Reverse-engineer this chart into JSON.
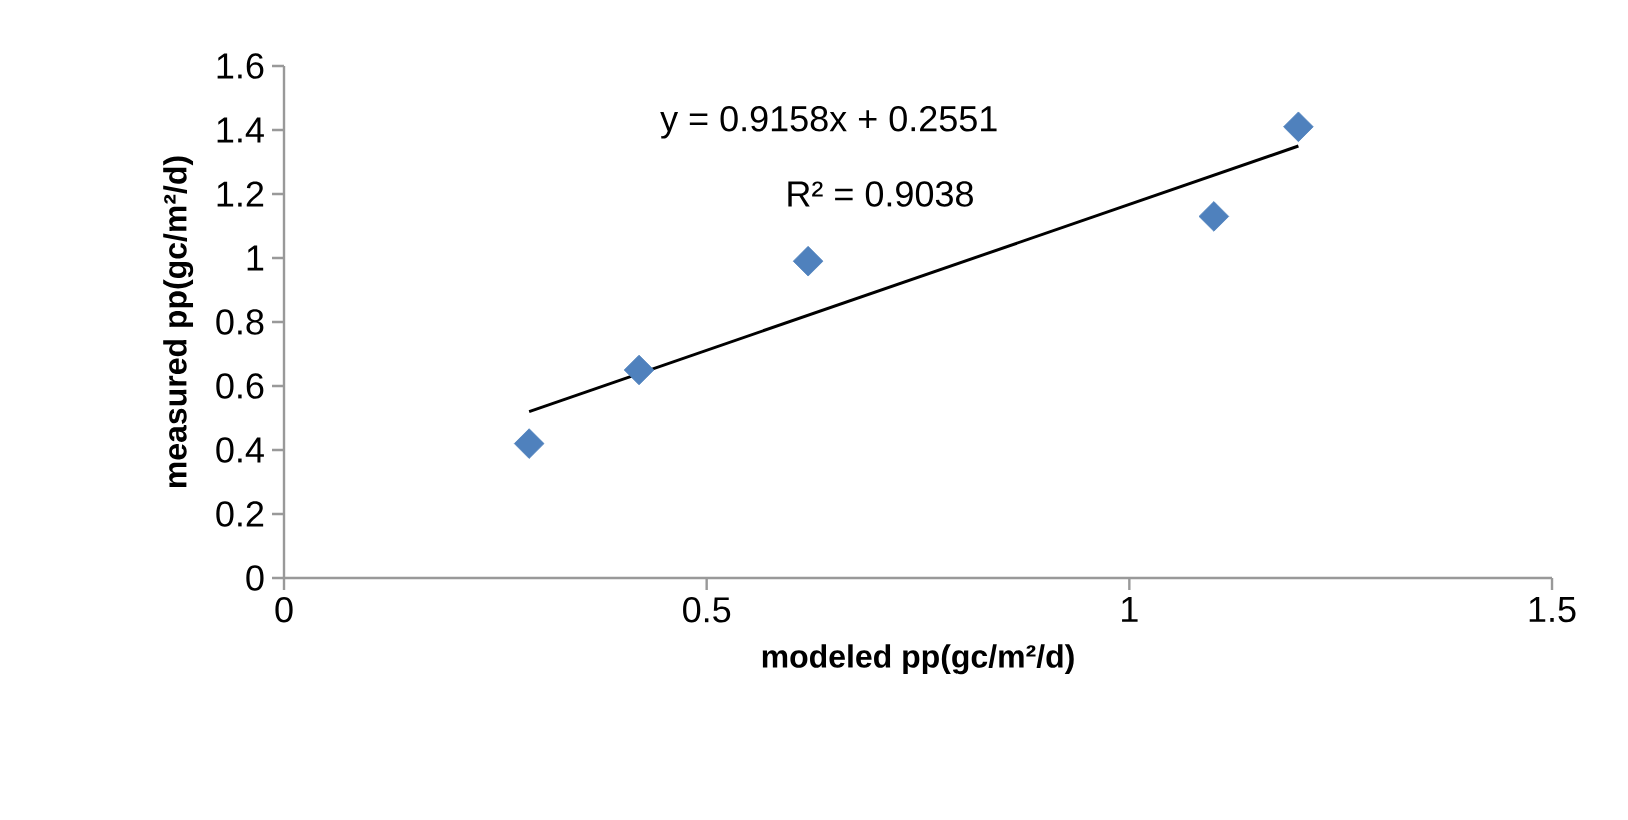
{
  "chart_data": {
    "type": "scatter",
    "xlabel": "modeled pp(gc/m²/d)",
    "ylabel": "measured pp(gc/m²/d)",
    "annotations": [
      "y = 0.9158x + 0.2551",
      "R² = 0.9038"
    ],
    "series": [
      {
        "color": "#4f81bd",
        "marker": "diamond",
        "x": [
          0.29,
          0.42,
          0.62,
          1.1,
          1.2
        ],
        "values": [
          0.42,
          0.65,
          0.99,
          1.13,
          1.41
        ]
      },
      {
        "type": "line",
        "color": "#000000",
        "marker": "none",
        "line_style": "solid",
        "x": [
          0.29,
          1.2
        ],
        "values": [
          0.52,
          1.35
        ]
      }
    ],
    "xlim": [
      0,
      1.5
    ],
    "ylim": [
      0,
      1.6
    ],
    "xticks": [
      0,
      0.5,
      1,
      1.5
    ],
    "yticks": [
      0,
      0.2,
      0.4,
      0.6,
      0.8,
      1,
      1.2,
      1.4,
      1.6
    ],
    "grid": false,
    "legend": false
  }
}
